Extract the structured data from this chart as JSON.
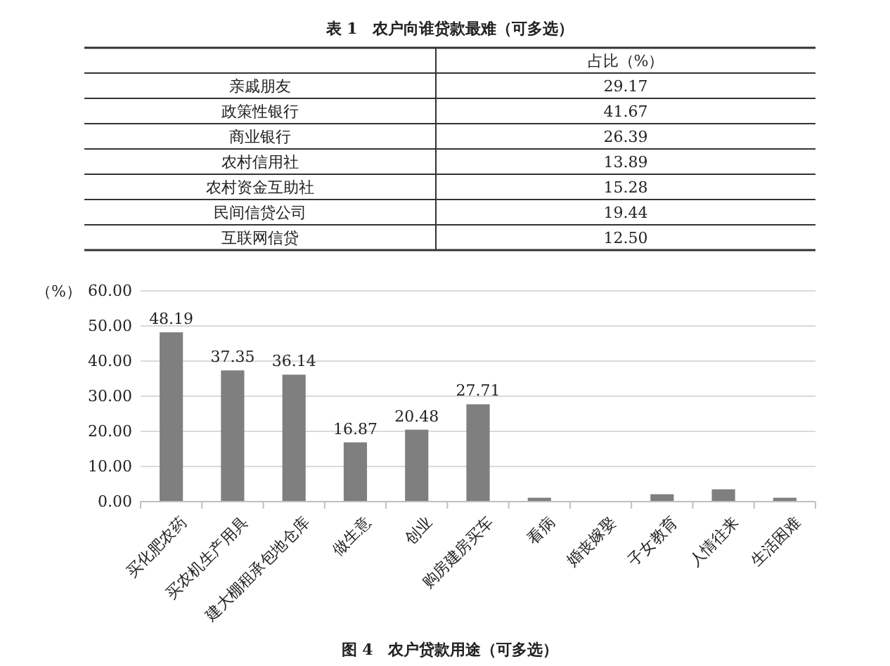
{
  "chart_data": [
    {
      "type": "other",
      "title": "表 1　农户向谁贷款最难（可多选）",
      "ylabel": "占比（%）",
      "categories": [
        "亲戚朋友",
        "政策性银行",
        "商业银行",
        "农村信用社",
        "农村资金互助社",
        "民间信贷公司",
        "互联网信贷"
      ],
      "values": [
        29.17,
        41.67,
        26.39,
        13.89,
        15.28,
        19.44,
        12.5
      ],
      "value_labels": [
        "29.17",
        "41.67",
        "26.39",
        "13.89",
        "15.28",
        "19.44",
        "12.50"
      ]
    },
    {
      "type": "bar",
      "title": "图 4　农户贷款用途（可多选）",
      "ylabel": "（%）",
      "categories": [
        "买化肥农药",
        "买农机生产用具",
        "建大棚租承包地仓库",
        "做生意",
        "创业",
        "购房建房买车",
        "看病",
        "婚丧嫁娶",
        "子女教育",
        "人情往来",
        "生活困难"
      ],
      "values": [
        48.19,
        37.35,
        36.14,
        16.87,
        20.48,
        27.71,
        1.1,
        0,
        2.1,
        3.5,
        1.1
      ],
      "value_labels": [
        "48.19",
        "37.35",
        "36.14",
        "16.87",
        "20.48",
        "27.71",
        null,
        null,
        null,
        null,
        null
      ],
      "color": "#7f7f7f",
      "ylim": [
        0,
        60
      ],
      "yticks": [
        {
          "value": 0,
          "label": "0.00"
        },
        {
          "value": 10,
          "label": "10.00"
        },
        {
          "value": 20,
          "label": "20.00"
        },
        {
          "value": 30,
          "label": "30.00"
        },
        {
          "value": 40,
          "label": "40.00"
        },
        {
          "value": 50,
          "label": "50.00"
        },
        {
          "value": 60,
          "label": "60.00"
        }
      ],
      "grid": "y"
    }
  ]
}
